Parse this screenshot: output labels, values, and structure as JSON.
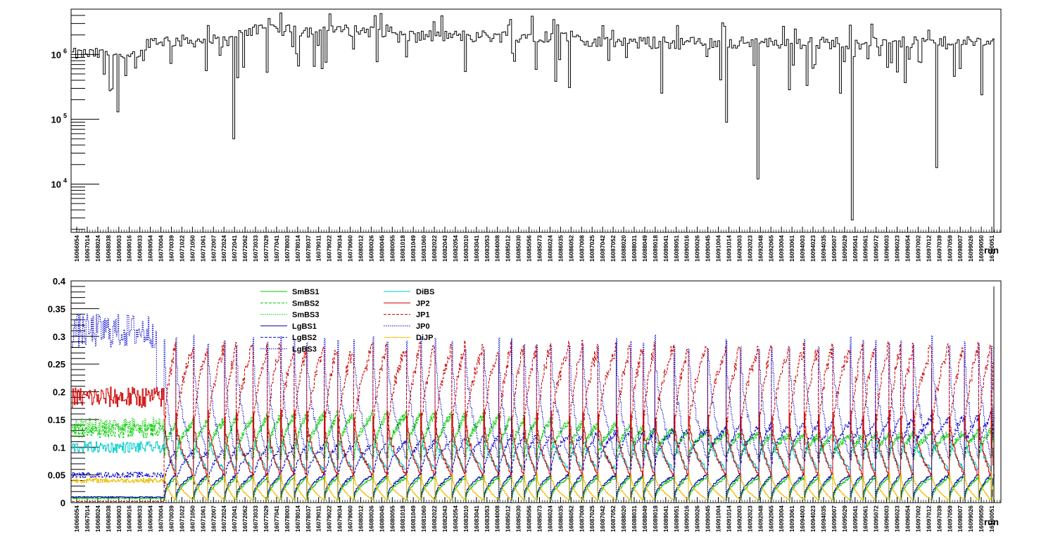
{
  "chart_data": [
    {
      "type": "line",
      "title": "",
      "xlabel": "run",
      "ylabel": "",
      "yscale": "log",
      "ylim": [
        1800,
        5000000
      ],
      "ytick_labels": [
        {
          "value": 10000,
          "base": "10",
          "exp": "4"
        },
        {
          "value": 100000,
          "base": "10",
          "exp": "5"
        },
        {
          "value": 1000000,
          "base": "10",
          "exp": "6"
        }
      ],
      "x_tick_labels": [
        "16066054",
        "16067014",
        "16068024",
        "16068038",
        "16069003",
        "16069016",
        "16069033",
        "16069054",
        "16070004",
        "16070039",
        "16071022",
        "16071050",
        "16071061",
        "16072007",
        "16072024",
        "16072041",
        "16072062",
        "16073033",
        "16077029",
        "16077041",
        "16078003",
        "16078014",
        "16078037",
        "16079011",
        "16079022",
        "16079034",
        "16079060",
        "16080012",
        "16080026",
        "16080045",
        "16080055",
        "16081018",
        "16081049",
        "16081060",
        "16082022",
        "16082043",
        "16082054",
        "16083010",
        "16083041",
        "16083053",
        "16084008",
        "16085012",
        "16085030",
        "16085056",
        "16085073",
        "16086024",
        "16086035",
        "16086052",
        "16087008",
        "16087025",
        "16087042",
        "16087052",
        "16088020",
        "16088031",
        "16088049",
        "16089018",
        "16089041",
        "16089051",
        "16090016",
        "16090026",
        "16090045",
        "16091004",
        "16091014",
        "16092003",
        "16092023",
        "16092048",
        "16092065",
        "16093004",
        "16093061",
        "16094003",
        "16094023",
        "16094035",
        "16095007",
        "16095029",
        "16095041",
        "16095061",
        "16095072",
        "16096003",
        "16096023",
        "16096054",
        "16097002",
        "16097012",
        "16097039",
        "16097059",
        "16098007",
        "16099026",
        "16099050",
        "16100051"
      ],
      "spikes": [
        {
          "run": "16072041",
          "value": 50000
        },
        {
          "run": "16092048",
          "value": 12000
        },
        {
          "run": "16095041",
          "value": 2800
        },
        {
          "run": "16097039",
          "value": 18000
        },
        {
          "run": "16091014",
          "value": 90000
        },
        {
          "run": "16069003",
          "value": 130000
        }
      ],
      "line_color": "#000000"
    },
    {
      "type": "line",
      "title": "",
      "xlabel": "run",
      "ylabel": "",
      "ylim": [
        0,
        0.4
      ],
      "yticks": [
        "0",
        "0.05",
        "0.1",
        "0.15",
        "0.2",
        "0.25",
        "0.3",
        "0.35",
        "0.4"
      ],
      "x_tick_labels": [
        "16066054",
        "16067014",
        "16068024",
        "16068038",
        "16069003",
        "16069016",
        "16069033",
        "16069054",
        "16070004",
        "16070039",
        "16071022",
        "16071050",
        "16071061",
        "16072007",
        "16072024",
        "16072041",
        "16072062",
        "16073033",
        "16077029",
        "16077041",
        "16078003",
        "16078014",
        "16078037",
        "16079011",
        "16079022",
        "16079034",
        "16079060",
        "16080012",
        "16080026",
        "16080045",
        "16080055",
        "16081018",
        "16081049",
        "16081060",
        "16082022",
        "16082043",
        "16082054",
        "16083010",
        "16083041",
        "16083053",
        "16084008",
        "16085012",
        "16085030",
        "16085056",
        "16085073",
        "16086024",
        "16086035",
        "16086052",
        "16087008",
        "16087025",
        "16087042",
        "16087052",
        "16088020",
        "16088031",
        "16088049",
        "16089018",
        "16089041",
        "16089051",
        "16090016",
        "16090026",
        "16090045",
        "16091004",
        "16091014",
        "16092003",
        "16092023",
        "16092048",
        "16092065",
        "16093004",
        "16093061",
        "16094003",
        "16094023",
        "16094035",
        "16095007",
        "16095029",
        "16095041",
        "16095061",
        "16095072",
        "16096003",
        "16096023",
        "16096054",
        "16097002",
        "16097012",
        "16097039",
        "16097059",
        "16098007",
        "16099026",
        "16099050",
        "16100051"
      ],
      "legend_placement": "top-left",
      "series": [
        {
          "name": "SmBS1",
          "color": "#00cc00",
          "style": "solid",
          "level": 0.02,
          "fill_start": 0.005,
          "fill_peak": 0.045
        },
        {
          "name": "SmBS2",
          "color": "#00cc00",
          "style": "dashed",
          "level": 0.12,
          "fill_start": 0.08,
          "fill_peak": 0.15
        },
        {
          "name": "SmBS3",
          "color": "#00cc00",
          "style": "dotted",
          "level": 0.13,
          "fill_start": 0.1,
          "fill_peak": 0.16
        },
        {
          "name": "LgBS1",
          "color": "#0000aa",
          "style": "solid",
          "level": 0.03,
          "fill_start": 0.01,
          "fill_peak": 0.05
        },
        {
          "name": "LgBS2",
          "color": "#0000cc",
          "style": "dashed",
          "level": 0.11,
          "fill_start": 0.06,
          "fill_peak": 0.15
        },
        {
          "name": "LgBS3",
          "color": "#0000cc",
          "style": "dotted",
          "level": 0.16,
          "fill_start": 0.08,
          "fill_peak": 0.29
        },
        {
          "name": "DiBS",
          "color": "#00cccc",
          "style": "solid",
          "level": 0.08,
          "fill_start": 0.06,
          "fill_peak": 0.13
        },
        {
          "name": "JP2",
          "color": "#cc0000",
          "style": "solid",
          "level": 0.09,
          "fill_start": 0.05,
          "fill_peak": 0.16
        },
        {
          "name": "JP1",
          "color": "#cc0000",
          "style": "dashed",
          "level": 0.21,
          "fill_start": 0.11,
          "fill_peak": 0.28
        },
        {
          "name": "JP0",
          "color": "#0000cc",
          "style": "dotted",
          "level": 0.0,
          "fill_start": 0.0,
          "fill_peak": 0.0
        },
        {
          "name": "DiJP",
          "color": "#eebb00",
          "style": "solid",
          "level": 0.02,
          "fill_start": 0.005,
          "fill_peak": 0.05
        }
      ]
    }
  ]
}
